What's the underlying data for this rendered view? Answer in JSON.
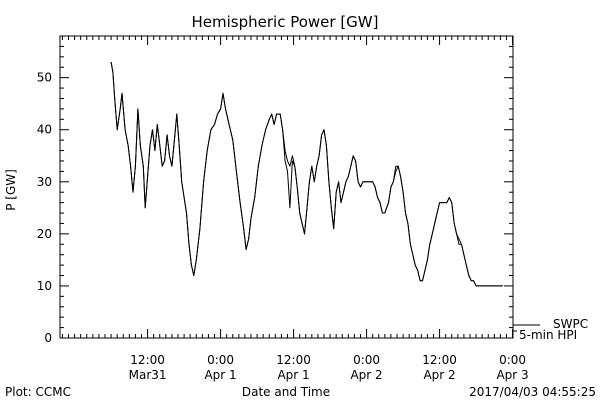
{
  "chart_data": {
    "type": "line",
    "title": "Hemispheric Power [GW]",
    "xlabel": "Date and Time",
    "ylabel": "P [GW]",
    "ylim": [
      0,
      58
    ],
    "yticks": [
      0,
      10,
      20,
      30,
      40,
      50
    ],
    "xlim_hours": [
      0,
      54
    ],
    "xticks": [
      {
        "h": 6,
        "time": "12:00",
        "date": "Mar31"
      },
      {
        "h": 18,
        "time": "0:00",
        "date": "Apr 1"
      },
      {
        "h": 30,
        "time": "12:00",
        "date": "Apr 1"
      },
      {
        "h": 42,
        "time": "0:00",
        "date": "Apr 2"
      },
      {
        "h": 54,
        "time": "12:00",
        "date": "Apr 2"
      },
      {
        "h": 66,
        "time": "0:00",
        "date": "Apr 3"
      }
    ],
    "series": [
      {
        "name": "5-min HPI",
        "points": [
          [
            0,
            53
          ],
          [
            0.3,
            51
          ],
          [
            0.6,
            46
          ],
          [
            1,
            40
          ],
          [
            1.5,
            44
          ],
          [
            1.8,
            47
          ],
          [
            2.3,
            40
          ],
          [
            2.8,
            37
          ],
          [
            3.2,
            33
          ],
          [
            3.6,
            28
          ],
          [
            4,
            33
          ],
          [
            4.4,
            44
          ],
          [
            4.8,
            37
          ],
          [
            5.3,
            33
          ],
          [
            5.6,
            25
          ],
          [
            6,
            31
          ],
          [
            6.4,
            37
          ],
          [
            6.8,
            40
          ],
          [
            7.2,
            36
          ],
          [
            7.6,
            41
          ],
          [
            8,
            37
          ],
          [
            8.4,
            33
          ],
          [
            8.8,
            34
          ],
          [
            9.2,
            39
          ],
          [
            9.6,
            35
          ],
          [
            10,
            33
          ],
          [
            10.4,
            38
          ],
          [
            10.8,
            43
          ],
          [
            11.2,
            37
          ],
          [
            11.6,
            30
          ],
          [
            12,
            27
          ],
          [
            12.4,
            24
          ],
          [
            12.8,
            18
          ],
          [
            13.2,
            14
          ],
          [
            13.6,
            12
          ],
          [
            14,
            15
          ],
          [
            14.6,
            21
          ],
          [
            15.2,
            30
          ],
          [
            15.8,
            36
          ],
          [
            16.4,
            40
          ],
          [
            17,
            41
          ],
          [
            17.5,
            43
          ],
          [
            18,
            44
          ],
          [
            18.4,
            47
          ],
          [
            18.8,
            44
          ],
          [
            19.4,
            41
          ],
          [
            20,
            38
          ],
          [
            20.6,
            32
          ],
          [
            21.2,
            26
          ],
          [
            21.8,
            21
          ],
          [
            22.2,
            17
          ],
          [
            22.6,
            19
          ],
          [
            23,
            23
          ],
          [
            23.6,
            27
          ],
          [
            24.2,
            33
          ],
          [
            24.8,
            37
          ],
          [
            25.4,
            40
          ],
          [
            26,
            42
          ],
          [
            26.4,
            43
          ],
          [
            26.8,
            41
          ],
          [
            27.2,
            43
          ],
          [
            27.8,
            43
          ],
          [
            28.2,
            40
          ],
          [
            28.6,
            34
          ],
          [
            29,
            32
          ],
          [
            29.4,
            25
          ],
          [
            29.8,
            34
          ],
          [
            30.2,
            33
          ],
          [
            30.6,
            29
          ],
          [
            31,
            24
          ],
          [
            31.4,
            22
          ],
          [
            31.8,
            20
          ],
          [
            32.2,
            25
          ],
          [
            32.6,
            30
          ],
          [
            33,
            33
          ],
          [
            33.4,
            30
          ],
          [
            33.8,
            33
          ],
          [
            34.2,
            35
          ],
          [
            34.6,
            39
          ],
          [
            35,
            40
          ],
          [
            35.4,
            37
          ],
          [
            35.8,
            30
          ],
          [
            36.2,
            25
          ],
          [
            36.6,
            21
          ],
          [
            37,
            28
          ],
          [
            37.4,
            30
          ],
          [
            37.8,
            26
          ],
          [
            38.2,
            28
          ],
          [
            38.6,
            30
          ],
          [
            39,
            31
          ],
          [
            39.4,
            33
          ],
          [
            39.8,
            35
          ],
          [
            40.2,
            34
          ],
          [
            40.6,
            30
          ],
          [
            41,
            29
          ],
          [
            41.4,
            30
          ],
          [
            42,
            30
          ],
          [
            42.6,
            30
          ],
          [
            43,
            30
          ],
          [
            43.4,
            29
          ],
          [
            43.8,
            27
          ],
          [
            44.2,
            26
          ],
          [
            44.6,
            24
          ],
          [
            45,
            24
          ],
          [
            45.6,
            26
          ],
          [
            46,
            29
          ],
          [
            46.4,
            30
          ],
          [
            46.8,
            32
          ],
          [
            47.2,
            33
          ],
          [
            47.6,
            31
          ],
          [
            48,
            28
          ],
          [
            48.4,
            24
          ],
          [
            48.8,
            22
          ],
          [
            49.2,
            18
          ],
          [
            49.6,
            16
          ],
          [
            50,
            14
          ],
          [
            50.4,
            13
          ],
          [
            50.8,
            11
          ],
          [
            51.2,
            11
          ],
          [
            51.6,
            13
          ],
          [
            52,
            15
          ],
          [
            52.4,
            18
          ],
          [
            52.8,
            20
          ],
          [
            53.2,
            22
          ],
          [
            53.6,
            24
          ],
          [
            54,
            26
          ],
          [
            54.6,
            26
          ],
          [
            55.2,
            26
          ],
          [
            55.6,
            27
          ],
          [
            56,
            26
          ],
          [
            56.4,
            22
          ],
          [
            56.8,
            20
          ],
          [
            57.2,
            18
          ],
          [
            57.6,
            18
          ],
          [
            58,
            16
          ],
          [
            58.4,
            14
          ],
          [
            58.8,
            12
          ],
          [
            59.2,
            11
          ],
          [
            59.6,
            11
          ],
          [
            60,
            10
          ],
          [
            61,
            10
          ],
          [
            62,
            10
          ],
          [
            63,
            10
          ],
          [
            64,
            10
          ],
          [
            64.4,
            10
          ]
        ]
      },
      {
        "name": "SWPC",
        "points": [
          [
            0,
            53
          ],
          [
            0.3,
            51
          ],
          [
            0.6,
            46
          ],
          [
            1,
            40
          ],
          [
            1.5,
            44
          ],
          [
            1.8,
            47
          ],
          [
            2.3,
            40
          ],
          [
            2.8,
            37
          ],
          [
            3.2,
            33
          ],
          [
            3.6,
            28
          ],
          [
            4,
            33
          ],
          [
            4.4,
            44
          ],
          [
            4.8,
            37
          ],
          [
            5.3,
            33
          ],
          [
            5.6,
            25
          ],
          [
            6,
            31
          ],
          [
            6.4,
            37
          ],
          [
            6.8,
            40
          ],
          [
            7.2,
            36
          ],
          [
            7.6,
            41
          ],
          [
            8,
            37
          ],
          [
            8.4,
            33
          ],
          [
            8.8,
            34
          ],
          [
            9.2,
            39
          ],
          [
            9.6,
            35
          ],
          [
            10,
            33
          ],
          [
            10.4,
            38
          ],
          [
            10.8,
            43
          ],
          [
            11.2,
            37
          ],
          [
            11.6,
            30
          ],
          [
            12,
            27
          ],
          [
            12.4,
            24
          ],
          [
            12.8,
            18
          ],
          [
            13.2,
            14
          ],
          [
            13.6,
            12
          ],
          [
            14,
            15
          ],
          [
            14.6,
            21
          ],
          [
            15.2,
            30
          ],
          [
            15.8,
            36
          ],
          [
            16.4,
            40
          ],
          [
            17,
            41
          ],
          [
            17.5,
            43
          ],
          [
            18,
            44
          ],
          [
            18.4,
            47
          ],
          [
            18.8,
            44
          ],
          [
            19.4,
            41
          ],
          [
            20,
            38
          ],
          [
            20.6,
            32
          ],
          [
            21.2,
            26
          ],
          [
            21.8,
            21
          ],
          [
            22.2,
            17
          ],
          [
            22.6,
            19
          ],
          [
            23,
            23
          ],
          [
            23.6,
            27
          ],
          [
            24.2,
            33
          ],
          [
            24.8,
            37
          ],
          [
            25.4,
            40
          ],
          [
            26,
            42
          ],
          [
            26.4,
            43
          ],
          [
            26.8,
            41
          ],
          [
            27.2,
            43
          ],
          [
            27.8,
            43
          ],
          [
            28.2,
            40
          ],
          [
            28.6,
            36
          ],
          [
            29,
            34
          ],
          [
            29.4,
            33
          ],
          [
            29.8,
            35
          ],
          [
            30.2,
            33
          ],
          [
            30.6,
            29
          ],
          [
            31,
            24
          ],
          [
            31.4,
            22
          ],
          [
            31.8,
            20
          ],
          [
            32.2,
            25
          ],
          [
            32.6,
            30
          ],
          [
            33,
            33
          ],
          [
            33.4,
            30
          ],
          [
            33.8,
            33
          ],
          [
            34.2,
            35
          ],
          [
            34.6,
            39
          ],
          [
            35,
            40
          ],
          [
            35.4,
            37
          ],
          [
            35.8,
            30
          ],
          [
            36.2,
            25
          ],
          [
            36.6,
            21
          ],
          [
            37,
            28
          ],
          [
            37.4,
            30
          ],
          [
            37.8,
            26
          ],
          [
            38.2,
            28
          ],
          [
            38.6,
            30
          ],
          [
            39,
            31
          ],
          [
            39.4,
            33
          ],
          [
            39.8,
            35
          ],
          [
            40.2,
            34
          ],
          [
            40.6,
            30
          ],
          [
            41,
            29
          ],
          [
            41.4,
            30
          ],
          [
            42,
            30
          ],
          [
            42.6,
            30
          ],
          [
            43,
            30
          ],
          [
            43.4,
            29
          ],
          [
            43.8,
            27
          ],
          [
            44.2,
            26
          ],
          [
            44.6,
            24
          ],
          [
            45,
            24
          ],
          [
            45.6,
            26
          ],
          [
            46,
            29
          ],
          [
            46.4,
            30
          ],
          [
            46.8,
            33
          ],
          [
            47.2,
            33
          ],
          [
            47.6,
            31
          ],
          [
            48,
            28
          ],
          [
            48.4,
            24
          ],
          [
            48.8,
            22
          ],
          [
            49.2,
            18
          ],
          [
            49.6,
            16
          ],
          [
            50,
            14
          ],
          [
            50.4,
            13
          ],
          [
            50.8,
            11
          ],
          [
            51.2,
            11
          ],
          [
            51.6,
            13
          ],
          [
            52,
            15
          ],
          [
            52.4,
            18
          ],
          [
            52.8,
            20
          ],
          [
            53.2,
            22
          ],
          [
            53.6,
            24
          ],
          [
            54,
            26
          ],
          [
            54.6,
            26
          ],
          [
            55.2,
            26
          ],
          [
            55.6,
            27
          ],
          [
            56,
            26
          ],
          [
            56.4,
            22
          ],
          [
            56.8,
            20
          ],
          [
            57.2,
            19
          ],
          [
            57.6,
            18
          ],
          [
            58,
            16
          ],
          [
            58.4,
            14
          ],
          [
            58.8,
            12
          ],
          [
            59.2,
            11
          ],
          [
            59.6,
            11
          ],
          [
            60,
            10
          ],
          [
            61,
            10
          ],
          [
            62,
            10
          ],
          [
            63,
            10
          ],
          [
            64,
            10
          ],
          [
            64.4,
            10
          ]
        ]
      }
    ],
    "legend": [
      "SWPC",
      "5-min HPI"
    ],
    "legend_position": "right, outside plot, bottom"
  },
  "footer": {
    "plot_credit": "Plot: CCMC",
    "timestamp": "2017/04/03 04:55:25"
  }
}
